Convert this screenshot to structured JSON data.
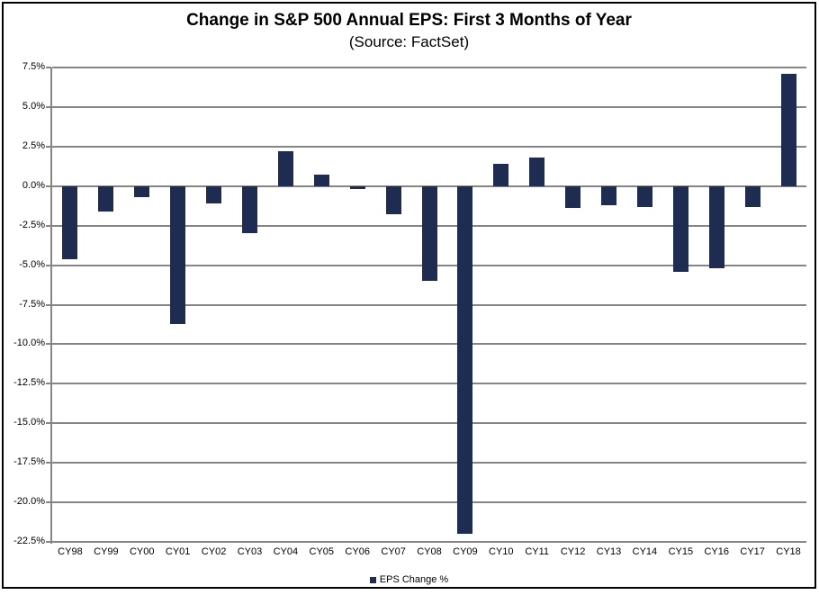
{
  "chart_data": {
    "type": "bar",
    "title": "Change in S&P 500 Annual EPS: First 3 Months of Year",
    "subtitle": "(Source: FactSet)",
    "categories": [
      "CY98",
      "CY99",
      "CY00",
      "CY01",
      "CY02",
      "CY03",
      "CY04",
      "CY05",
      "CY06",
      "CY07",
      "CY08",
      "CY09",
      "CY10",
      "CY11",
      "CY12",
      "CY13",
      "CY14",
      "CY15",
      "CY16",
      "CY17",
      "CY18"
    ],
    "series": [
      {
        "name": "EPS Change %",
        "values": [
          -4.6,
          -1.6,
          -0.7,
          -8.7,
          -1.1,
          -3.0,
          2.2,
          0.7,
          -0.2,
          -1.8,
          -6.0,
          -22.0,
          1.4,
          1.8,
          -1.4,
          -1.2,
          -1.3,
          -5.4,
          -5.2,
          -1.3,
          7.1
        ]
      }
    ],
    "ylim": [
      -22.5,
      7.5
    ],
    "ytick_step": 2.5,
    "ytick_labels": [
      "7.5%",
      "5.0%",
      "2.5%",
      "0.0%",
      "-2.5%",
      "-5.0%",
      "-7.5%",
      "-10.0%",
      "-12.5%",
      "-15.0%",
      "-17.5%",
      "-20.0%",
      "-22.5%"
    ],
    "xlabel": "",
    "ylabel": "",
    "grid": true,
    "legend_position": "bottom",
    "colors": {
      "bar": "#1E2C52",
      "gridline": "#858585",
      "axis_line": "#858585",
      "tick_text": "#000000",
      "title_text": "#000000",
      "frame_border": "#000000",
      "background": "#FFFFFF"
    }
  },
  "legend": {
    "label": "EPS Change %"
  }
}
